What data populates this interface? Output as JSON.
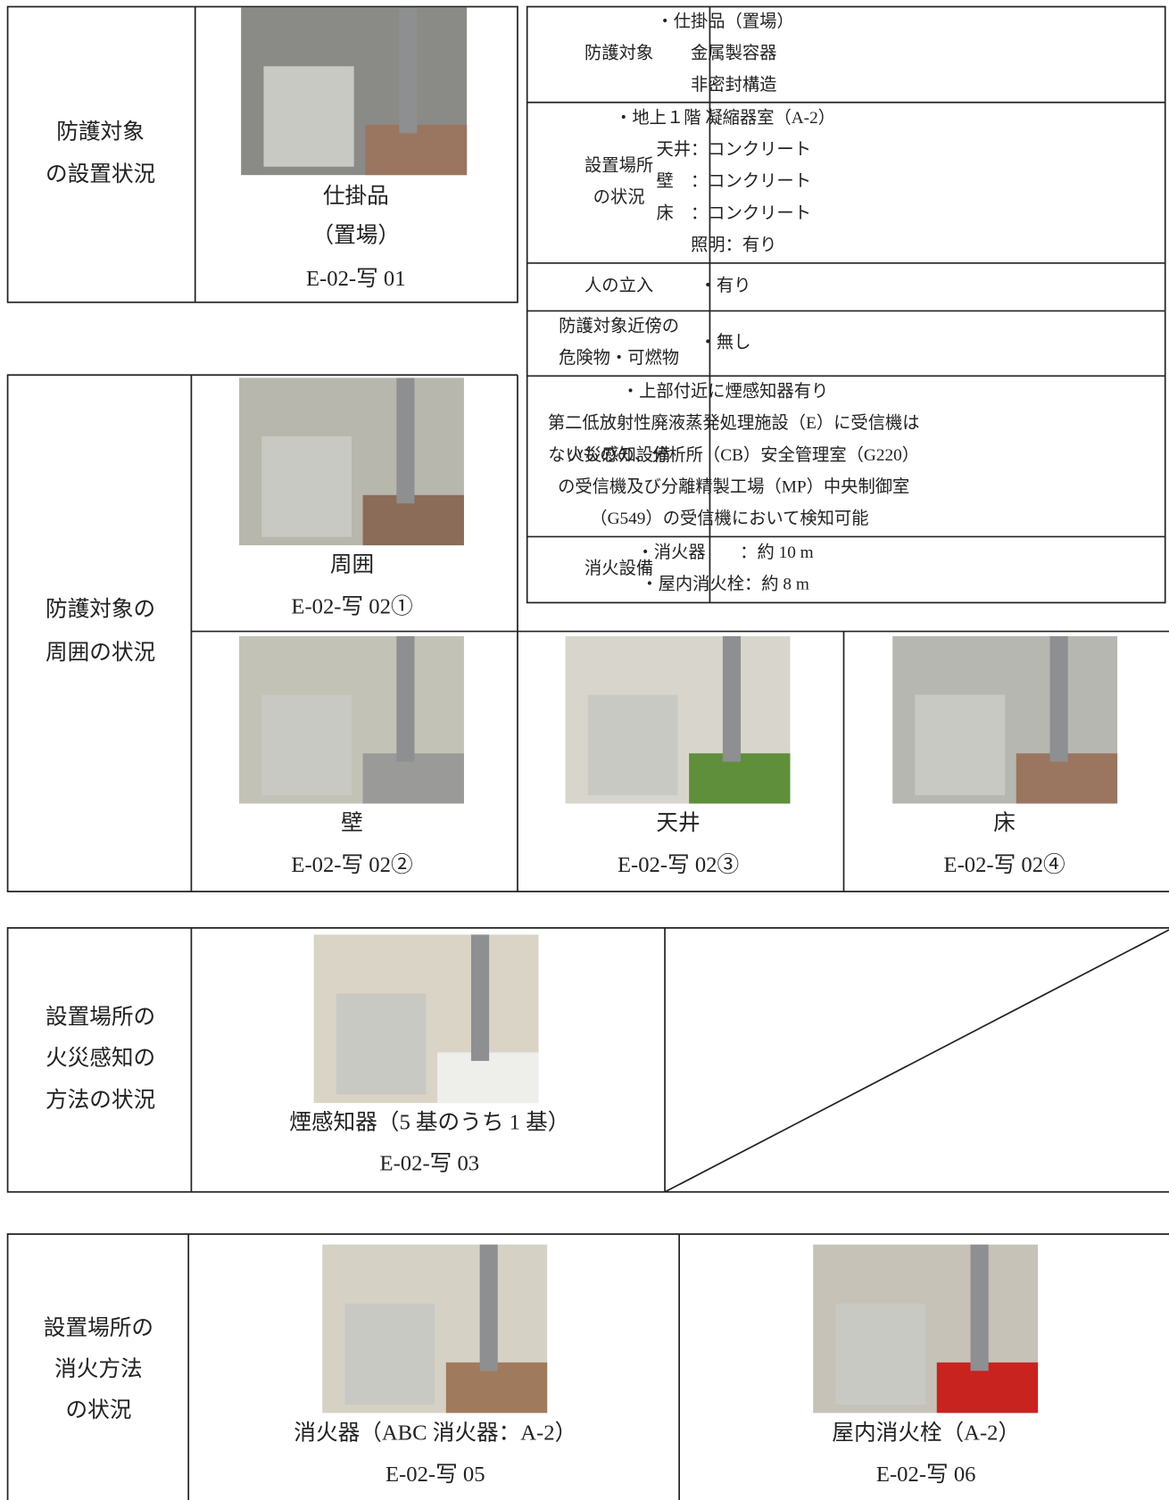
{
  "placement": {
    "label_lines": [
      "防護対象",
      "の設置状況"
    ],
    "photo": {
      "caption_lines": [
        "仕掛品",
        "（置場）"
      ],
      "id": "E-02-写 01"
    }
  },
  "info": {
    "rows": [
      {
        "header_lines": [
          "防護対象"
        ],
        "content_lines": [
          "・仕掛品（置場）",
          "　金属製容器",
          "　非密封構造"
        ]
      },
      {
        "header_lines": [
          "設置場所",
          "の状況"
        ],
        "content_lines": [
          "・地上１階 凝縮器室（A-2）",
          "　天井：コンクリート",
          "　壁　：コンクリート",
          "　床　：コンクリート",
          "　照明：有り"
        ]
      },
      {
        "header_lines": [
          "人の立入"
        ],
        "content_lines": [
          "・有り"
        ]
      },
      {
        "header_lines": [
          "防護対象近傍の",
          "危険物・可燃物"
        ],
        "content_lines": [
          "・無し"
        ]
      },
      {
        "header_lines": [
          "火災感知設備"
        ],
        "content_lines": [
          "・上部付近に煙感知器有り",
          "　第二低放射性廃液蒸発処理施設（E）に受信機は",
          "　ないものの、分析所（CB）安全管理室（G220）",
          "　の受信機及び分離精製工場（MP）中央制御室",
          "　（G549）の受信機において検知可能"
        ]
      },
      {
        "header_lines": [
          "消火設備"
        ],
        "content_lines": [
          "・消火器　　：約 10 m",
          "・屋内消火栓：約 8 m"
        ]
      }
    ]
  },
  "surroundings": {
    "label_lines": [
      "防護対象の",
      "周囲の状況"
    ],
    "photos": [
      {
        "caption": "周囲",
        "id": "E-02-写 02①"
      },
      {
        "caption": "壁",
        "id": "E-02-写 02②"
      },
      {
        "caption": "天井",
        "id": "E-02-写 02③"
      },
      {
        "caption": "床",
        "id": "E-02-写 02④"
      }
    ]
  },
  "detection": {
    "label_lines": [
      "設置場所の",
      "火災感知の",
      "方法の状況"
    ],
    "photo": {
      "caption": "煙感知器（5 基のうち 1 基）",
      "id": "E-02-写 03"
    }
  },
  "extinguishing": {
    "label_lines": [
      "設置場所の",
      "消火方法",
      "の状況"
    ],
    "photos": [
      {
        "caption": "消火器（ABC 消火器：A-2）",
        "id": "E-02-写 05"
      },
      {
        "caption": "屋内消火栓（A-2）",
        "id": "E-02-写 06"
      }
    ]
  }
}
